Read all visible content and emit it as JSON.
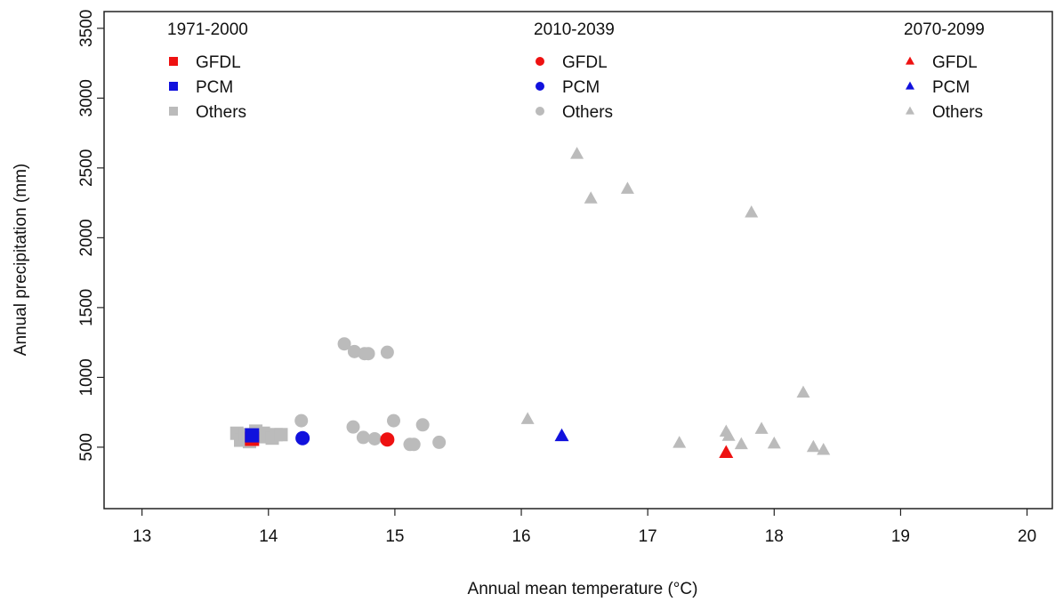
{
  "chart_data": {
    "type": "scatter",
    "title": "",
    "xlabel": "Annual mean temperature (°C)",
    "ylabel": "Annual precipitation (mm)",
    "xlim": [
      12.7,
      20.2
    ],
    "ylim": [
      60,
      3620
    ],
    "xticks": [
      13,
      14,
      15,
      16,
      17,
      18,
      19,
      20
    ],
    "yticks": [
      500,
      1000,
      1500,
      2000,
      2500,
      3000,
      3500
    ],
    "grid": false,
    "legend_placement": "top",
    "colors": {
      "gfdl": "#ee1111",
      "pcm": "#1111dd",
      "others": "#bbbbbb"
    },
    "groups": [
      {
        "period": "1971-2000",
        "marker": "square",
        "series": [
          {
            "name": "GFDL",
            "color": "#ee1111",
            "points": [
              [
                13.87,
                560
              ]
            ]
          },
          {
            "name": "PCM",
            "color": "#1111dd",
            "points": [
              [
                13.87,
                585
              ]
            ]
          },
          {
            "name": "Others",
            "color": "#bbbbbb",
            "points": [
              [
                13.75,
                600
              ],
              [
                13.78,
                550
              ],
              [
                13.82,
                590
              ],
              [
                13.85,
                540
              ],
              [
                13.9,
                615
              ],
              [
                13.93,
                575
              ],
              [
                13.96,
                600
              ],
              [
                14.0,
                585
              ],
              [
                14.03,
                565
              ],
              [
                14.06,
                590
              ],
              [
                14.1,
                590
              ]
            ]
          }
        ]
      },
      {
        "period": "2010-2039",
        "marker": "circle",
        "series": [
          {
            "name": "GFDL",
            "color": "#ee1111",
            "points": [
              [
                14.94,
                555
              ]
            ]
          },
          {
            "name": "PCM",
            "color": "#1111dd",
            "points": [
              [
                14.27,
                565
              ]
            ]
          },
          {
            "name": "Others",
            "color": "#bbbbbb",
            "points": [
              [
                14.26,
                690
              ],
              [
                14.6,
                1240
              ],
              [
                14.68,
                1185
              ],
              [
                14.76,
                1170
              ],
              [
                14.79,
                1170
              ],
              [
                14.94,
                1180
              ],
              [
                14.67,
                645
              ],
              [
                14.75,
                570
              ],
              [
                14.84,
                560
              ],
              [
                14.99,
                690
              ],
              [
                15.12,
                520
              ],
              [
                15.15,
                520
              ],
              [
                15.22,
                660
              ],
              [
                15.35,
                535
              ]
            ]
          }
        ]
      },
      {
        "period": "2070-2099",
        "marker": "triangle",
        "series": [
          {
            "name": "GFDL",
            "color": "#ee1111",
            "points": [
              [
                17.62,
                460
              ]
            ]
          },
          {
            "name": "PCM",
            "color": "#1111dd",
            "points": [
              [
                16.32,
                580
              ]
            ]
          },
          {
            "name": "Others",
            "color": "#bbbbbb",
            "points": [
              [
                16.05,
                700
              ],
              [
                16.44,
                2600
              ],
              [
                16.55,
                2280
              ],
              [
                16.84,
                2350
              ],
              [
                17.82,
                2180
              ],
              [
                17.25,
                530
              ],
              [
                17.62,
                610
              ],
              [
                17.64,
                580
              ],
              [
                17.74,
                520
              ],
              [
                17.9,
                630
              ],
              [
                18.0,
                525
              ],
              [
                18.23,
                890
              ],
              [
                18.31,
                500
              ],
              [
                18.39,
                480
              ]
            ]
          }
        ]
      }
    ]
  }
}
